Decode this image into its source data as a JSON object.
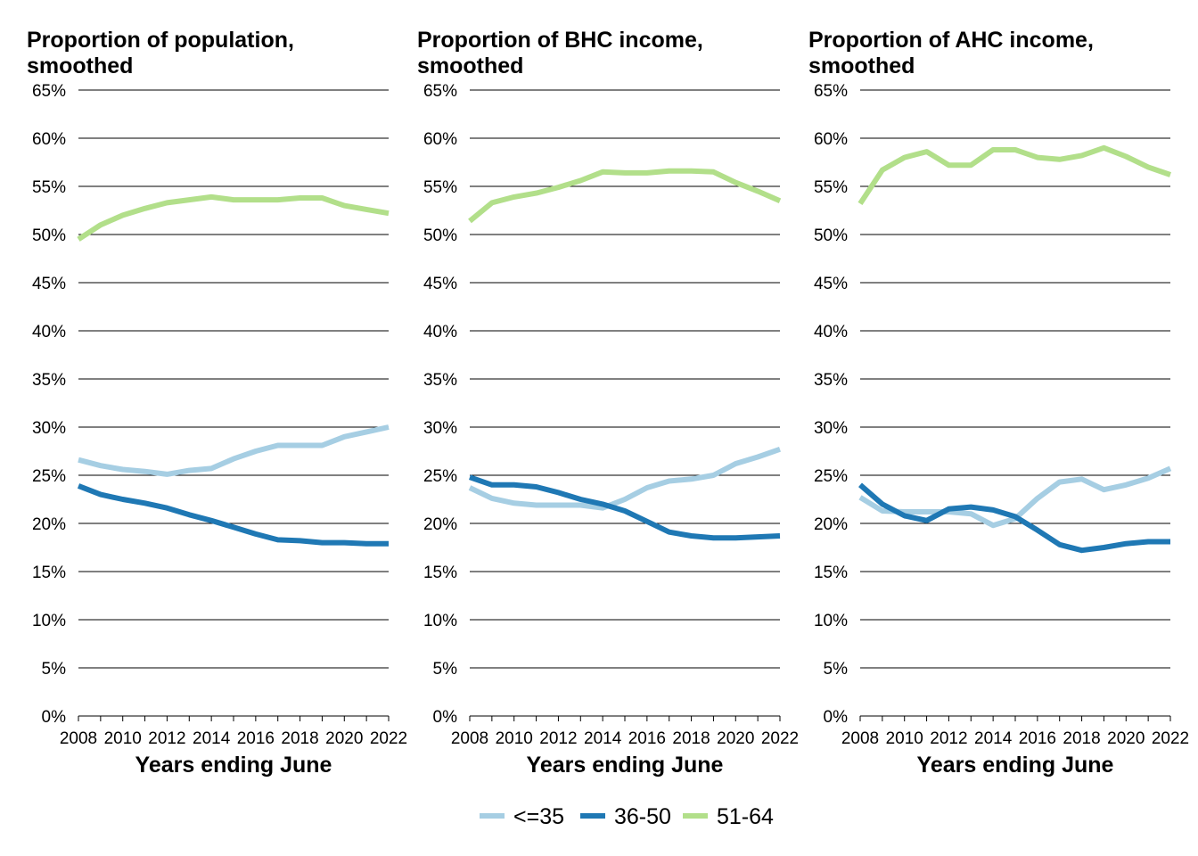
{
  "colors": {
    "le35": "#a6cee3",
    "p36_50": "#1f78b4",
    "p51_64": "#b2df8a",
    "grid": "#000000"
  },
  "legend": [
    {
      "label": "<=35",
      "color": "#a6cee3"
    },
    {
      "label": "36-50",
      "color": "#1f78b4"
    },
    {
      "label": "51-64",
      "color": "#b2df8a"
    }
  ],
  "chart_data": [
    {
      "type": "line",
      "title": "Proportion of population, smoothed",
      "title_lines": [
        "Proportion of population,",
        "smoothed"
      ],
      "xlabel": "Years ending June",
      "ylabel": "",
      "ylim": [
        0,
        0.65
      ],
      "y_ticks": [
        "0%",
        "5%",
        "10%",
        "15%",
        "20%",
        "25%",
        "30%",
        "35%",
        "40%",
        "45%",
        "50%",
        "55%",
        "60%",
        "65%"
      ],
      "x_ticks": [
        "2008",
        "2010",
        "2012",
        "2014",
        "2016",
        "2018",
        "2020",
        "2022"
      ],
      "x": [
        2008,
        2009,
        2010,
        2011,
        2012,
        2013,
        2014,
        2015,
        2016,
        2017,
        2018,
        2019,
        2020,
        2021,
        2022
      ],
      "grid": true,
      "series": [
        {
          "name": "<=35",
          "values": [
            0.266,
            0.26,
            0.256,
            0.254,
            0.251,
            0.255,
            0.257,
            0.267,
            0.275,
            0.281,
            0.281,
            0.281,
            0.29,
            0.295,
            0.3
          ]
        },
        {
          "name": "36-50",
          "values": [
            0.239,
            0.23,
            0.225,
            0.221,
            0.216,
            0.209,
            0.203,
            0.196,
            0.189,
            0.183,
            0.182,
            0.18,
            0.18,
            0.179,
            0.179
          ]
        },
        {
          "name": "51-64",
          "values": [
            0.495,
            0.51,
            0.52,
            0.527,
            0.533,
            0.536,
            0.539,
            0.536,
            0.536,
            0.536,
            0.538,
            0.538,
            0.53,
            0.526,
            0.522
          ]
        }
      ]
    },
    {
      "type": "line",
      "title": "Proportion of BHC income, smoothed",
      "title_lines": [
        "Proportion of BHC income,",
        "smoothed"
      ],
      "xlabel": "Years ending June",
      "ylabel": "",
      "ylim": [
        0,
        0.65
      ],
      "y_ticks": [
        "0%",
        "5%",
        "10%",
        "15%",
        "20%",
        "25%",
        "30%",
        "35%",
        "40%",
        "45%",
        "50%",
        "55%",
        "60%",
        "65%"
      ],
      "x_ticks": [
        "2008",
        "2010",
        "2012",
        "2014",
        "2016",
        "2018",
        "2020",
        "2022"
      ],
      "x": [
        2008,
        2009,
        2010,
        2011,
        2012,
        2013,
        2014,
        2015,
        2016,
        2017,
        2018,
        2019,
        2020,
        2021,
        2022
      ],
      "grid": true,
      "series": [
        {
          "name": "<=35",
          "values": [
            0.237,
            0.226,
            0.221,
            0.219,
            0.219,
            0.219,
            0.216,
            0.225,
            0.237,
            0.244,
            0.246,
            0.25,
            0.262,
            0.269,
            0.277
          ]
        },
        {
          "name": "36-50",
          "values": [
            0.248,
            0.24,
            0.24,
            0.238,
            0.232,
            0.225,
            0.22,
            0.213,
            0.202,
            0.191,
            0.187,
            0.185,
            0.185,
            0.186,
            0.187
          ]
        },
        {
          "name": "51-64",
          "values": [
            0.514,
            0.533,
            0.539,
            0.543,
            0.549,
            0.556,
            0.565,
            0.564,
            0.564,
            0.566,
            0.566,
            0.565,
            0.554,
            0.545,
            0.535
          ]
        }
      ]
    },
    {
      "type": "line",
      "title": "Proportion of AHC income, smoothed",
      "title_lines": [
        "Proportion of AHC income,",
        "smoothed"
      ],
      "xlabel": "Years ending June",
      "ylabel": "",
      "ylim": [
        0,
        0.65
      ],
      "y_ticks": [
        "0%",
        "5%",
        "10%",
        "15%",
        "20%",
        "25%",
        "30%",
        "35%",
        "40%",
        "45%",
        "50%",
        "55%",
        "60%",
        "65%"
      ],
      "x_ticks": [
        "2008",
        "2010",
        "2012",
        "2014",
        "2016",
        "2018",
        "2020",
        "2022"
      ],
      "x": [
        2008,
        2009,
        2010,
        2011,
        2012,
        2013,
        2014,
        2015,
        2016,
        2017,
        2018,
        2019,
        2020,
        2021,
        2022
      ],
      "grid": true,
      "series": [
        {
          "name": "<=35",
          "values": [
            0.227,
            0.213,
            0.212,
            0.212,
            0.212,
            0.21,
            0.198,
            0.205,
            0.226,
            0.243,
            0.246,
            0.235,
            0.24,
            0.247,
            0.257
          ]
        },
        {
          "name": "36-50",
          "values": [
            0.24,
            0.22,
            0.208,
            0.203,
            0.215,
            0.217,
            0.214,
            0.207,
            0.193,
            0.178,
            0.172,
            0.175,
            0.179,
            0.181,
            0.181
          ]
        },
        {
          "name": "51-64",
          "values": [
            0.532,
            0.567,
            0.58,
            0.586,
            0.572,
            0.572,
            0.588,
            0.588,
            0.58,
            0.578,
            0.582,
            0.59,
            0.581,
            0.57,
            0.562
          ]
        }
      ]
    }
  ]
}
